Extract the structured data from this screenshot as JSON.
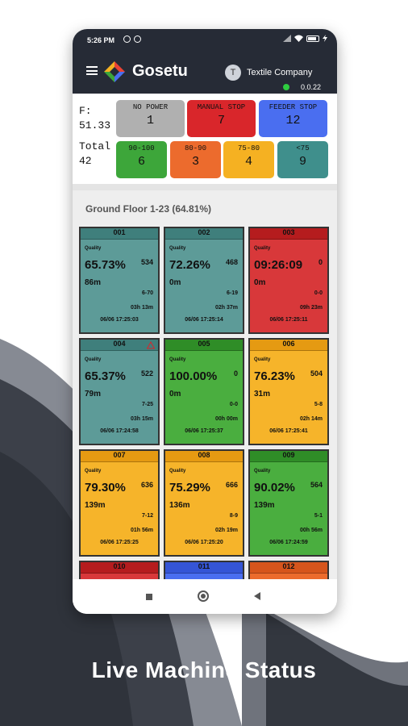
{
  "status_bar": {
    "time": "5:26 PM"
  },
  "header": {
    "brand": "Gosetu",
    "avatar_letter": "T",
    "company": "Textile Company",
    "version": "0.0.22"
  },
  "summary": {
    "f_label": "F:",
    "f_value": "51.33",
    "total_label": "Total",
    "total_value": "42",
    "status_boxes": [
      {
        "label": "NO POWER",
        "count": "1",
        "color": "#b0b0b0"
      },
      {
        "label": "MANUAL STOP",
        "count": "7",
        "color": "#d9262b"
      },
      {
        "label": "FEEDER STOP",
        "count": "12",
        "color": "#4a6ef0"
      }
    ],
    "range_boxes": [
      {
        "label": "90-100",
        "count": "6",
        "color": "#3da63a"
      },
      {
        "label": "80-90",
        "count": "3",
        "color": "#ec6b2d"
      },
      {
        "label": "75-80",
        "count": "4",
        "color": "#f5b122"
      },
      {
        "label": "<75",
        "count": "9",
        "color": "#3f8f8c"
      }
    ]
  },
  "floor_title": "Ground Floor 1-23 (64.81%)",
  "machines": [
    {
      "id": "001",
      "quality_label": "Quality",
      "value": "65.73%",
      "count": "534",
      "length": "86m",
      "range": "6-70",
      "duration": "03h 13m",
      "timestamp": "06/06 17:25:03",
      "color": "#5d9b98",
      "header_color": "#3f7f7c",
      "warning": false
    },
    {
      "id": "002",
      "quality_label": "Quality",
      "value": "72.26%",
      "count": "468",
      "length": "0m",
      "range": "6-19",
      "duration": "02h 37m",
      "timestamp": "06/06 17:25:14",
      "color": "#5d9b98",
      "header_color": "#3f7f7c",
      "warning": false
    },
    {
      "id": "003",
      "quality_label": "Quality",
      "value": "09:26:09",
      "count": "0",
      "length": "0m",
      "range": "0-0",
      "duration": "09h 23m",
      "timestamp": "06/06 17:25:11",
      "color": "#d8383a",
      "header_color": "#b51c1e",
      "warning": false
    },
    {
      "id": "004",
      "quality_label": "Quality",
      "value": "65.37%",
      "count": "522",
      "length": "79m",
      "range": "7-25",
      "duration": "03h 15m",
      "timestamp": "06/06 17:24:58",
      "color": "#5d9b98",
      "header_color": "#3f7f7c",
      "warning": true
    },
    {
      "id": "005",
      "quality_label": "Quality",
      "value": "100.00%",
      "count": "0",
      "length": "0m",
      "range": "0-0",
      "duration": "00h 00m",
      "timestamp": "06/06 17:25:37",
      "color": "#4aae3f",
      "header_color": "#2f8d27",
      "warning": false
    },
    {
      "id": "006",
      "quality_label": "Quality",
      "value": "76.23%",
      "count": "504",
      "length": "31m",
      "range": "5-8",
      "duration": "02h 14m",
      "timestamp": "06/06 17:25:41",
      "color": "#f6b42a",
      "header_color": "#e59a12",
      "warning": false
    },
    {
      "id": "007",
      "quality_label": "Quality",
      "value": "79.30%",
      "count": "636",
      "length": "139m",
      "range": "7-12",
      "duration": "01h 56m",
      "timestamp": "06/06 17:25:25",
      "color": "#f6b42a",
      "header_color": "#e59a12",
      "warning": false
    },
    {
      "id": "008",
      "quality_label": "Quality",
      "value": "75.29%",
      "count": "666",
      "length": "136m",
      "range": "8-9",
      "duration": "02h 19m",
      "timestamp": "06/06 17:25:20",
      "color": "#f6b42a",
      "header_color": "#e59a12",
      "warning": false
    },
    {
      "id": "009",
      "quality_label": "Quality",
      "value": "90.02%",
      "count": "564",
      "length": "139m",
      "range": "5-1",
      "duration": "00h 56m",
      "timestamp": "06/06 17:24:59",
      "color": "#4aae3f",
      "header_color": "#2f8d27",
      "warning": false
    },
    {
      "id": "010",
      "color": "#d8383a",
      "header_color": "#b51c1e"
    },
    {
      "id": "011",
      "color": "#4a6ef0",
      "header_color": "#3555d6"
    },
    {
      "id": "012",
      "color": "#ec6b2d",
      "header_color": "#d6551c"
    }
  ],
  "tagline": "Live Machine Status"
}
